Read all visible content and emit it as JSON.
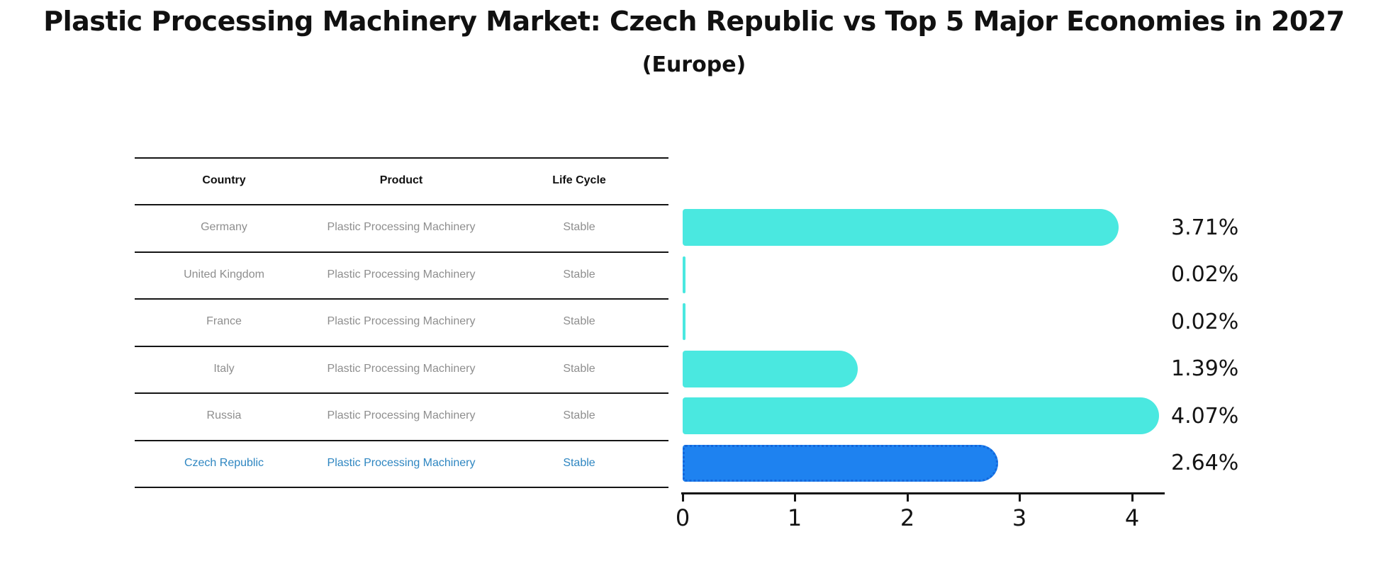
{
  "title": "Plastic Processing Machinery Market: Czech Republic vs Top 5 Major Economies in 2027",
  "subtitle": "(Europe)",
  "table": {
    "headers": [
      "Country",
      "Product",
      "Life Cycle"
    ],
    "rows": [
      {
        "country": "Germany",
        "product": "Plastic Processing Machinery",
        "life_cycle": "Stable",
        "highlight": false
      },
      {
        "country": "United Kingdom",
        "product": "Plastic Processing Machinery",
        "life_cycle": "Stable",
        "highlight": false
      },
      {
        "country": "France",
        "product": "Plastic Processing Machinery",
        "life_cycle": "Stable",
        "highlight": false
      },
      {
        "country": "Italy",
        "product": "Plastic Processing Machinery",
        "life_cycle": "Stable",
        "highlight": false
      },
      {
        "country": "Russia",
        "product": "Plastic Processing Machinery",
        "life_cycle": "Stable",
        "highlight": false
      },
      {
        "country": "Czech Republic",
        "product": "Plastic Processing Machinery",
        "life_cycle": "Stable",
        "highlight": true
      }
    ]
  },
  "chart_data": {
    "type": "bar",
    "orientation": "horizontal",
    "title": "Plastic Processing Machinery Market: Czech Republic vs Top 5 Major Economies in 2027 (Europe)",
    "categories": [
      "Germany",
      "United Kingdom",
      "France",
      "Italy",
      "Russia",
      "Czech Republic"
    ],
    "values": [
      3.71,
      0.02,
      0.02,
      1.39,
      4.07,
      2.64
    ],
    "value_labels": [
      "3.71%",
      "0.02%",
      "0.02%",
      "1.39%",
      "4.07%",
      "2.64%"
    ],
    "xlabel": "",
    "ylabel": "",
    "xticks": [
      0,
      1,
      2,
      3,
      4
    ],
    "xlim": [
      0,
      4.28
    ],
    "grid": false,
    "legend": null,
    "highlight_index": 5
  },
  "colors": {
    "bar_cyan": "#4AE8E0",
    "bar_blue": "#1E82F0",
    "highlight_border": "#1467DB",
    "highlight_text": "#2E86C1",
    "axis": "#151515",
    "table_text": "#8e8e8e"
  }
}
